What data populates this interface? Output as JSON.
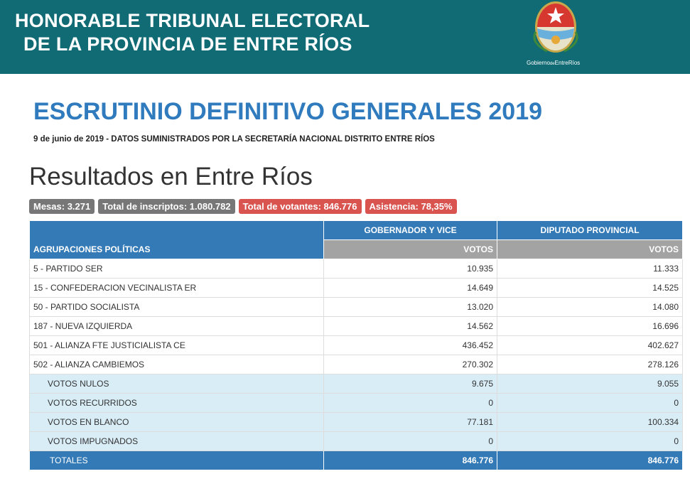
{
  "header": {
    "title_lines": [
      "HONORABLE TRIBUNAL ELECTORAL",
      "DE LA PROVINCIA DE ENTRE RÍOS"
    ],
    "logo_caption": [
      "Gobierno",
      "de",
      "EntreRíos"
    ]
  },
  "title": "ESCRUTINIO DEFINITIVO GENERALES 2019",
  "subtitle": "9 de junio de 2019 - DATOS SUMINISTRADOS POR LA SECRETARÍA NACIONAL DISTRITO ENTRE RÍOS",
  "heading": "Resultados en Entre Ríos",
  "badges": [
    {
      "text": "Mesas: 3.271",
      "color": "#777777"
    },
    {
      "text": "Total de inscriptos: 1.080.782",
      "color": "#777777"
    },
    {
      "text": "Total de votantes: 846.776",
      "color": "#d9534f"
    },
    {
      "text": "Asistencia: 78,35%",
      "color": "#d9534f"
    }
  ],
  "table": {
    "columns": [
      "AGRUPACIONES POLÍTICAS",
      "GOBERNADOR Y VICE",
      "DIPUTADO PROVINCIAL"
    ],
    "subheaders": [
      "VOTOS",
      "VOTOS"
    ],
    "parties": [
      [
        "5 - PARTIDO SER",
        "10.935",
        "11.333"
      ],
      [
        "15 - CONFEDERACION VECINALISTA ER",
        "14.649",
        "14.525"
      ],
      [
        "50 - PARTIDO SOCIALISTA",
        "13.020",
        "14.080"
      ],
      [
        "187 - NUEVA IZQUIERDA",
        "14.562",
        "16.696"
      ],
      [
        "501 - ALIANZA FTE JUSTICIALISTA CE",
        "436.452",
        "402.627"
      ],
      [
        "502 - ALIANZA CAMBIEMOS",
        "270.302",
        "278.126"
      ]
    ],
    "other": [
      [
        "VOTOS NULOS",
        "9.675",
        "9.055"
      ],
      [
        "VOTOS RECURRIDOS",
        "0",
        "0"
      ],
      [
        "VOTOS EN BLANCO",
        "77.181",
        "100.334"
      ],
      [
        "VOTOS IMPUGNADOS",
        "0",
        "0"
      ]
    ],
    "totals": [
      "TOTALES",
      "846.776",
      "846.776"
    ]
  }
}
